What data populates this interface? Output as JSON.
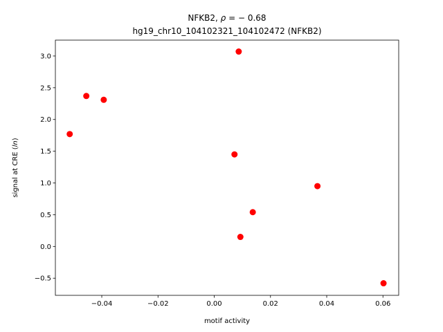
{
  "chart_data": {
    "type": "scatter",
    "title_line1": "NFKB2, ",
    "title_rho_symbol": "ρ",
    "title_rho_value": " = − 0.68",
    "title_line2": "hg19_chr10_104102321_104102472 (NFKB2)",
    "xlabel": "motif activity",
    "ylabel_prefix": "signal at CRE (",
    "ylabel_italic": "ln",
    "ylabel_suffix": ")",
    "xlim": [
      -0.0565,
      0.0656
    ],
    "ylim": [
      -0.77,
      3.25
    ],
    "xticks": [
      -0.04,
      -0.02,
      0.0,
      0.02,
      0.04,
      0.06
    ],
    "xtick_labels": [
      "−0.04",
      "−0.02",
      "0.00",
      "0.02",
      "0.04",
      "0.06"
    ],
    "yticks": [
      -0.5,
      0.0,
      0.5,
      1.0,
      1.5,
      2.0,
      2.5,
      3.0
    ],
    "ytick_labels": [
      "−0.5",
      "0.0",
      "0.5",
      "1.0",
      "1.5",
      "2.0",
      "2.5",
      "3.0"
    ],
    "marker_color": "#ff0000",
    "points": [
      {
        "x": -0.0514,
        "y": 1.77
      },
      {
        "x": -0.0455,
        "y": 2.37
      },
      {
        "x": -0.0393,
        "y": 2.31
      },
      {
        "x": 0.0072,
        "y": 1.45
      },
      {
        "x": 0.0087,
        "y": 3.07
      },
      {
        "x": 0.0093,
        "y": 0.15
      },
      {
        "x": 0.0137,
        "y": 0.54
      },
      {
        "x": 0.0367,
        "y": 0.95
      },
      {
        "x": 0.0602,
        "y": -0.58
      }
    ],
    "grid": false,
    "legend": "none"
  }
}
